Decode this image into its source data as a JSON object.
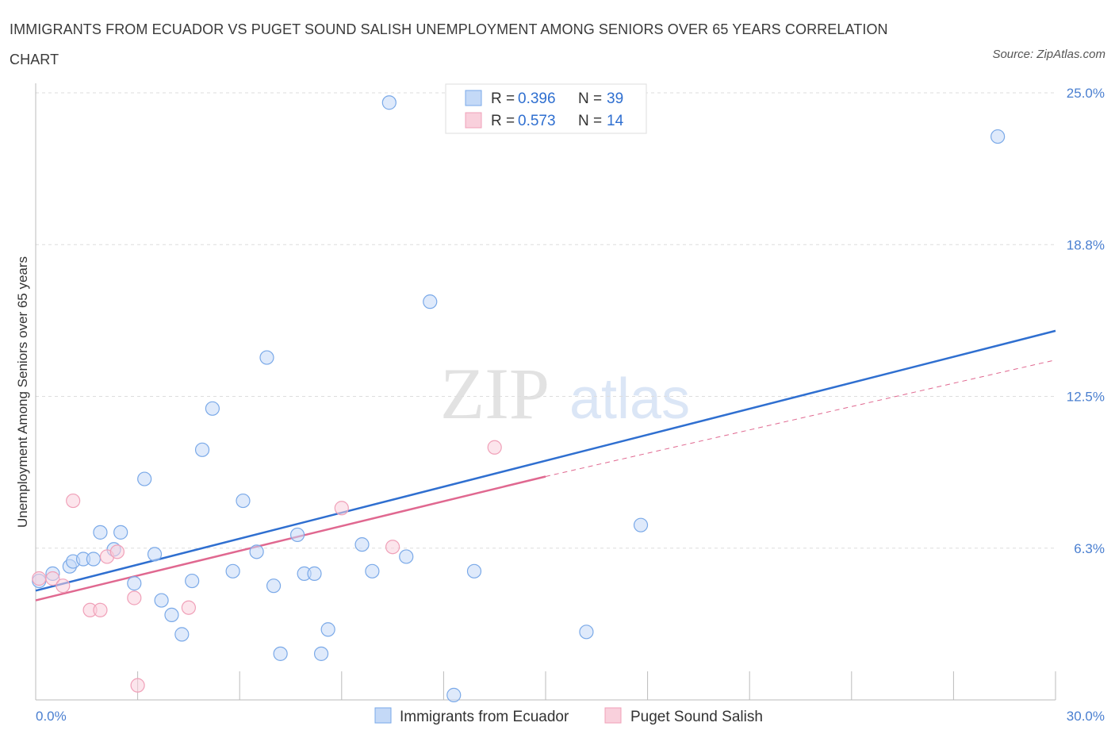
{
  "title": "IMMIGRANTS FROM ECUADOR VS PUGET SOUND SALISH UNEMPLOYMENT AMONG SENIORS OVER 65 YEARS CORRELATION CHART",
  "source": "Source: ZipAtlas.com",
  "watermark": {
    "zip": "ZIP",
    "atlas": "atlas"
  },
  "colors": {
    "blue": "#7aa9e8",
    "blue_fill": "#c4d9f7",
    "blue_line": "#2f6fd0",
    "pink": "#f0a0b8",
    "pink_fill": "#f9d0dc",
    "pink_line": "#e06890",
    "grid": "#dddddd",
    "tick_text": "#4a7fd0"
  },
  "stats_legend": [
    {
      "r_label": "R =",
      "r_value": "0.396",
      "n_label": "N =",
      "n_value": "39"
    },
    {
      "r_label": "R =",
      "r_value": "0.573",
      "n_label": "N =",
      "n_value": "14"
    }
  ],
  "chart_data": {
    "type": "scatter",
    "title": "IMMIGRANTS FROM ECUADOR VS PUGET SOUND SALISH UNEMPLOYMENT AMONG SENIORS OVER 65 YEARS CORRELATION CHART",
    "xlabel": "",
    "ylabel": "Unemployment Among Seniors over 65 years",
    "xlim": [
      0,
      30
    ],
    "ylim": [
      0,
      25
    ],
    "x_tick_labels": [
      {
        "value": 0,
        "label": "0.0%"
      },
      {
        "value": 30,
        "label": "30.0%"
      }
    ],
    "y_tick_labels": [
      {
        "value": 6.25,
        "label": "6.3%"
      },
      {
        "value": 12.5,
        "label": "12.5%"
      },
      {
        "value": 18.75,
        "label": "18.8%"
      },
      {
        "value": 25.0,
        "label": "25.0%"
      }
    ],
    "grid": true,
    "legend_position": "bottom",
    "series": [
      {
        "name": "Immigrants from Ecuador",
        "color": "#7aa9e8",
        "trend": {
          "x": [
            0,
            30
          ],
          "y": [
            4.5,
            15.2
          ]
        },
        "points": [
          [
            0.1,
            4.9
          ],
          [
            0.5,
            5.2
          ],
          [
            1.0,
            5.5
          ],
          [
            1.1,
            5.7
          ],
          [
            1.4,
            5.8
          ],
          [
            1.7,
            5.8
          ],
          [
            1.9,
            6.9
          ],
          [
            2.3,
            6.2
          ],
          [
            2.5,
            6.9
          ],
          [
            2.9,
            4.8
          ],
          [
            3.2,
            9.1
          ],
          [
            3.5,
            6.0
          ],
          [
            3.7,
            4.1
          ],
          [
            4.0,
            3.5
          ],
          [
            4.3,
            2.7
          ],
          [
            4.6,
            4.9
          ],
          [
            4.9,
            10.3
          ],
          [
            5.2,
            12.0
          ],
          [
            5.8,
            5.3
          ],
          [
            6.1,
            8.2
          ],
          [
            6.5,
            6.1
          ],
          [
            6.8,
            14.1
          ],
          [
            7.0,
            4.7
          ],
          [
            7.2,
            1.9
          ],
          [
            7.7,
            6.8
          ],
          [
            7.9,
            5.2
          ],
          [
            8.2,
            5.2
          ],
          [
            8.4,
            1.9
          ],
          [
            8.6,
            2.9
          ],
          [
            9.6,
            6.4
          ],
          [
            9.9,
            5.3
          ],
          [
            10.4,
            24.6
          ],
          [
            10.9,
            5.9
          ],
          [
            11.6,
            16.4
          ],
          [
            12.3,
            0.2
          ],
          [
            12.9,
            5.3
          ],
          [
            16.2,
            2.8
          ],
          [
            17.8,
            7.2
          ],
          [
            28.3,
            23.2
          ]
        ]
      },
      {
        "name": "Puget Sound Salish",
        "color": "#f0a0b8",
        "trend": {
          "x": [
            0,
            15
          ],
          "y": [
            4.1,
            9.2
          ]
        },
        "trend_dashed": {
          "x": [
            15,
            30
          ],
          "y": [
            9.2,
            14.0
          ]
        },
        "points": [
          [
            0.1,
            5.0
          ],
          [
            0.5,
            5.0
          ],
          [
            0.8,
            4.7
          ],
          [
            1.1,
            8.2
          ],
          [
            1.6,
            3.7
          ],
          [
            1.9,
            3.7
          ],
          [
            2.1,
            5.9
          ],
          [
            2.4,
            6.1
          ],
          [
            2.9,
            4.2
          ],
          [
            3.0,
            0.6
          ],
          [
            4.5,
            3.8
          ],
          [
            9.0,
            7.9
          ],
          [
            10.5,
            6.3
          ],
          [
            13.5,
            10.4
          ]
        ]
      }
    ]
  }
}
